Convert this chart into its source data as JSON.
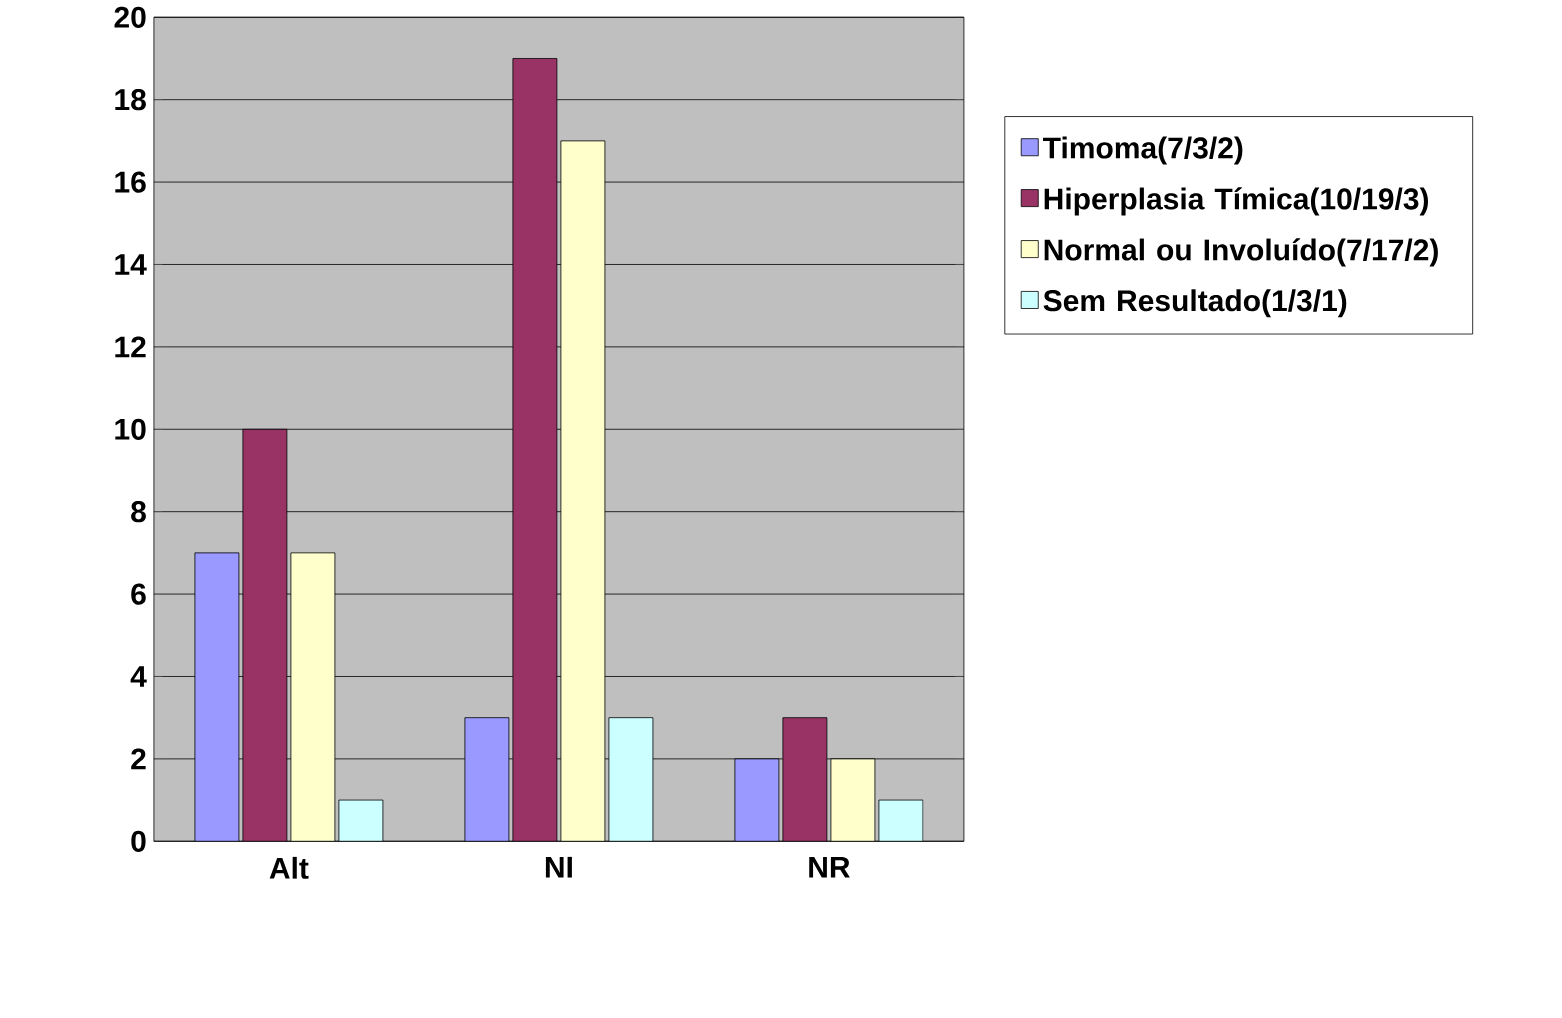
{
  "chart_data": {
    "type": "bar",
    "categories": [
      "Alt",
      "NI",
      "NR"
    ],
    "series": [
      {
        "name": "Timoma(7/3/2)",
        "color": "#9999ff",
        "values": [
          7,
          3,
          2
        ]
      },
      {
        "name": "Hiperplasia Tímica(10/19/3)",
        "color": "#993366",
        "values": [
          10,
          19,
          3
        ]
      },
      {
        "name": "Normal ou Involuído(7/17/2)",
        "color": "#ffffcc",
        "values": [
          7,
          17,
          2
        ]
      },
      {
        "name": "Sem Resultado(1/3/1)",
        "color": "#ccffff",
        "values": [
          1,
          3,
          1
        ]
      }
    ],
    "ylim": [
      0,
      20
    ],
    "yticks": [
      0,
      2,
      4,
      6,
      8,
      10,
      12,
      14,
      16,
      18,
      20
    ],
    "grid": "y",
    "legend": "right"
  }
}
